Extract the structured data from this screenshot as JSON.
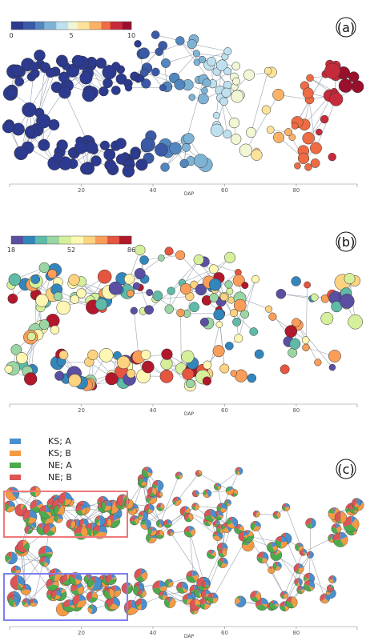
{
  "panels": [
    {
      "letter": "(a)",
      "colorbar_ticks": [
        "0",
        "5",
        "10"
      ],
      "x_ticks": [
        "20",
        "40",
        "60",
        "80"
      ],
      "x_label": "DAP",
      "palette": [
        "#2c3a8f",
        "#3a5aa6",
        "#5286bf",
        "#7fb3d5",
        "#bfe0ee",
        "#f1f7d4",
        "#fde39a",
        "#fbb166",
        "#ee6b43",
        "#c62b3b",
        "#99102c"
      ]
    },
    {
      "letter": "(b)",
      "colorbar_ticks": [
        "18",
        "52",
        "86"
      ],
      "x_ticks": [
        "20",
        "40",
        "60",
        "80"
      ],
      "x_label": "DAP",
      "palette": [
        "#5a4fa2",
        "#3386bc",
        "#5fbaa8",
        "#9ad5a4",
        "#d6ef9b",
        "#fdf7b3",
        "#fdd280",
        "#f99d59",
        "#e5553f",
        "#b2182b"
      ]
    },
    {
      "letter": "(c)",
      "x_ticks": [
        "20",
        "40",
        "60",
        "80"
      ],
      "x_label": "DAP",
      "legend": [
        {
          "label": "KS; A",
          "color": "#4a8fcd"
        },
        {
          "label": "KS; B",
          "color": "#f59a43"
        },
        {
          "label": "NE; A",
          "color": "#4daa4d"
        },
        {
          "label": "NE; B",
          "color": "#dd5555"
        }
      ],
      "highlight_boxes": [
        {
          "color": "#f07878"
        },
        {
          "color": "#7f7ff0"
        }
      ]
    }
  ]
}
